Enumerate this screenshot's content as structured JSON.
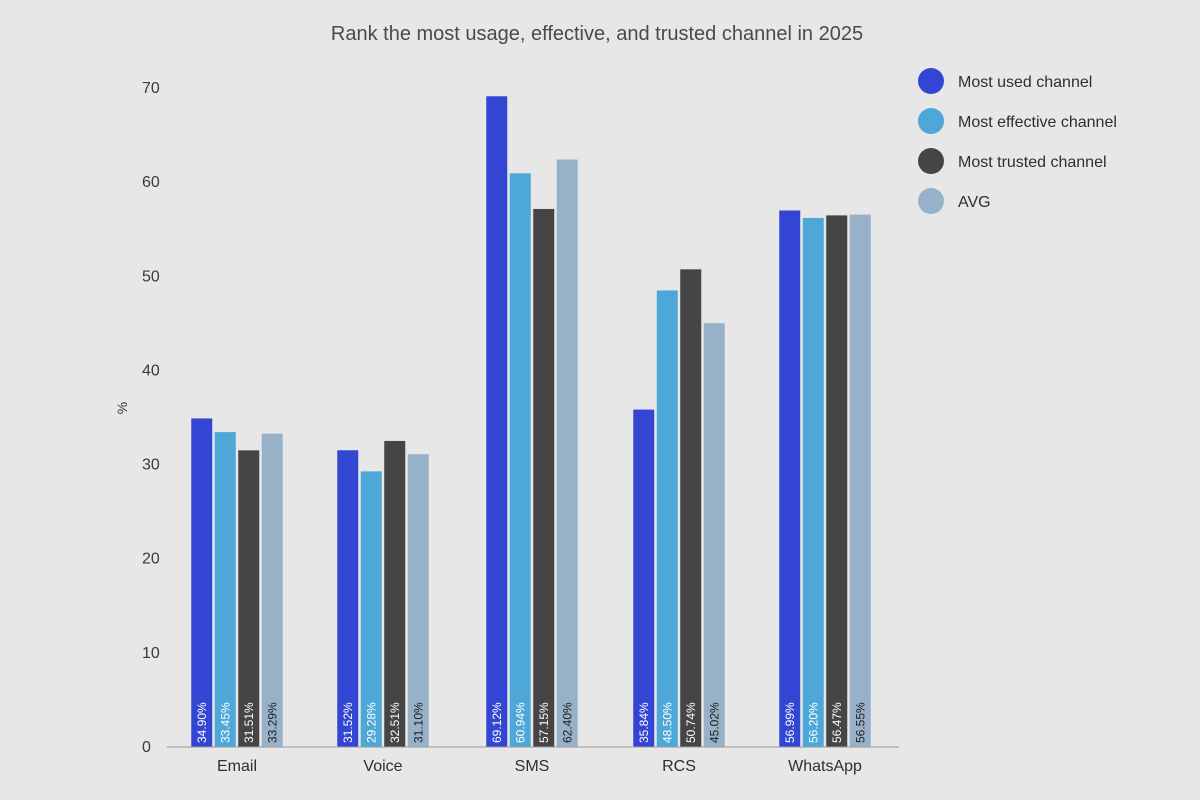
{
  "chart_data": {
    "type": "bar",
    "title": "Rank the most usage, effective, and trusted channel in 2025",
    "xlabel": "",
    "ylabel": "%",
    "ylim": [
      0,
      70
    ],
    "yticks": [
      0,
      10,
      20,
      30,
      40,
      50,
      60,
      70
    ],
    "grid": false,
    "legend_position": "top-right",
    "categories": [
      "Email",
      "Voice",
      "SMS",
      "RCS",
      "WhatsApp"
    ],
    "series": [
      {
        "name": "Most used channel",
        "color": "#3346d3",
        "label_color": "#ffffff",
        "values": [
          34.9,
          31.52,
          69.12,
          35.84,
          56.99
        ],
        "labels": [
          "34.90%",
          "31.52%",
          "69.12%",
          "35.84%",
          "56.99%"
        ]
      },
      {
        "name": "Most effective channel",
        "color": "#4da8d8",
        "label_color": "#ffffff",
        "values": [
          33.45,
          29.28,
          60.94,
          48.5,
          56.2
        ],
        "labels": [
          "33.45%",
          "29.28%",
          "60.94%",
          "48.50%",
          "56.20%"
        ]
      },
      {
        "name": "Most trusted channel",
        "color": "#454545",
        "label_color": "#ffffff",
        "values": [
          31.51,
          32.51,
          57.15,
          50.74,
          56.47
        ],
        "labels": [
          "31.51%",
          "32.51%",
          "57.15%",
          "50.74%",
          "56.47%"
        ]
      },
      {
        "name": "AVG",
        "color": "#97b2c8",
        "label_color": "#1e1e1e",
        "values": [
          33.29,
          31.1,
          62.4,
          45.02,
          56.55
        ],
        "labels": [
          "33.29%",
          "31.10%",
          "62.40%",
          "45.02%",
          "56.55%"
        ]
      }
    ]
  }
}
